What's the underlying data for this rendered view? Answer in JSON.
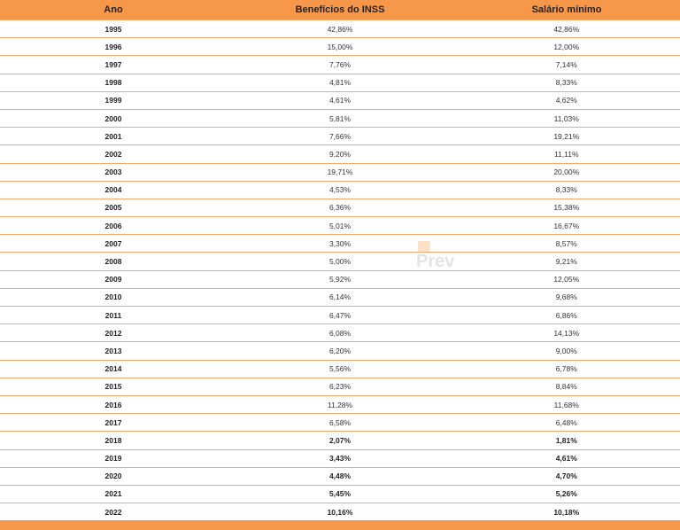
{
  "table": {
    "headers": [
      "Ano",
      "Benefícios do INSS",
      "Salário mínimo"
    ],
    "rows": [
      {
        "ano": "1995",
        "inss": "42,86%",
        "sm": "42,86%",
        "bold": false
      },
      {
        "ano": "1996",
        "inss": "15,00%",
        "sm": "12,00%",
        "bold": false
      },
      {
        "ano": "1997",
        "inss": "7,76%",
        "sm": "7,14%",
        "bold": false
      },
      {
        "ano": "1998",
        "inss": "4,81%",
        "sm": "8,33%",
        "bold": false
      },
      {
        "ano": "1999",
        "inss": "4,61%",
        "sm": "4,62%",
        "bold": false
      },
      {
        "ano": "2000",
        "inss": "5,81%",
        "sm": "11,03%",
        "bold": false
      },
      {
        "ano": "2001",
        "inss": "7,66%",
        "sm": "19,21%",
        "bold": false
      },
      {
        "ano": "2002",
        "inss": "9,20%",
        "sm": "11,11%",
        "bold": false
      },
      {
        "ano": "2003",
        "inss": "19,71%",
        "sm": "20,00%",
        "bold": false
      },
      {
        "ano": "2004",
        "inss": "4,53%",
        "sm": "8,33%",
        "bold": false
      },
      {
        "ano": "2005",
        "inss": "6,36%",
        "sm": "15,38%",
        "bold": false
      },
      {
        "ano": "2006",
        "inss": "5,01%",
        "sm": "16,67%",
        "bold": false
      },
      {
        "ano": "2007",
        "inss": "3,30%",
        "sm": "8,57%",
        "bold": false
      },
      {
        "ano": "2008",
        "inss": "5,00%",
        "sm": "9,21%",
        "bold": false
      },
      {
        "ano": "2009",
        "inss": "5,92%",
        "sm": "12,05%",
        "bold": false
      },
      {
        "ano": "2010",
        "inss": "6,14%",
        "sm": "9,68%",
        "bold": false
      },
      {
        "ano": "2011",
        "inss": "6,47%",
        "sm": "6,86%",
        "bold": false
      },
      {
        "ano": "2012",
        "inss": "6,08%",
        "sm": "14,13%",
        "bold": false
      },
      {
        "ano": "2013",
        "inss": "6,20%",
        "sm": "9,00%",
        "bold": false
      },
      {
        "ano": "2014",
        "inss": "5,56%",
        "sm": "6,78%",
        "bold": false
      },
      {
        "ano": "2015",
        "inss": "6,23%",
        "sm": "8,84%",
        "bold": false
      },
      {
        "ano": "2016",
        "inss": "11,28%",
        "sm": "11,68%",
        "bold": false
      },
      {
        "ano": "2017",
        "inss": "6,58%",
        "sm": "6,48%",
        "bold": false
      },
      {
        "ano": "2018",
        "inss": "2,07%",
        "sm": "1,81%",
        "bold": true
      },
      {
        "ano": "2019",
        "inss": "3,43%",
        "sm": "4,61%",
        "bold": true
      },
      {
        "ano": "2020",
        "inss": "4,48%",
        "sm": "4,70%",
        "bold": true
      },
      {
        "ano": "2021",
        "inss": "5,45%",
        "sm": "5,26%",
        "bold": true
      },
      {
        "ano": "2022",
        "inss": "10,16%",
        "sm": "10,18%",
        "bold": true
      }
    ]
  },
  "watermark": "Prev",
  "colors": {
    "accent": "#f7974a",
    "row_border": "#f8a86a"
  }
}
